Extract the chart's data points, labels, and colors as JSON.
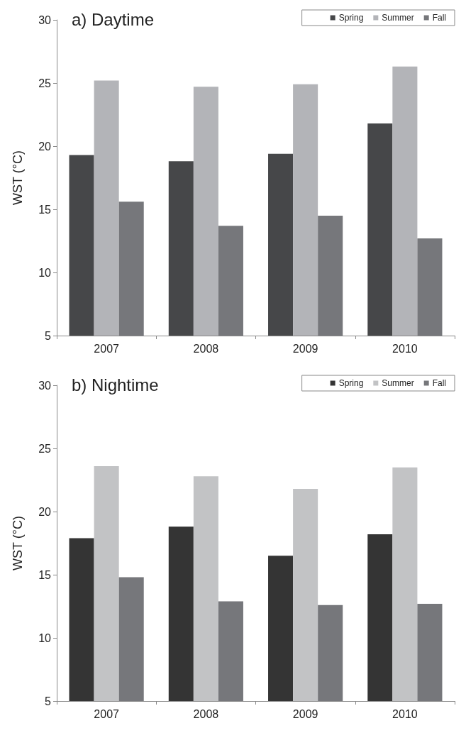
{
  "chart_data": [
    {
      "type": "bar",
      "title": "a) Daytime",
      "ylabel": "WST (°C)",
      "categories": [
        "2007",
        "2008",
        "2009",
        "2010"
      ],
      "series": [
        {
          "name": "Spring",
          "color": "#464749",
          "values": [
            19.3,
            18.8,
            19.4,
            21.8
          ]
        },
        {
          "name": "Summer",
          "color": "#b3b4b8",
          "values": [
            25.2,
            24.7,
            24.9,
            26.3
          ]
        },
        {
          "name": "Fall",
          "color": "#76777b",
          "values": [
            15.6,
            13.7,
            14.5,
            12.7
          ]
        }
      ],
      "ylim": [
        5,
        30
      ],
      "yticks": [
        5,
        10,
        15,
        20,
        25,
        30
      ],
      "legend": "top right"
    },
    {
      "type": "bar",
      "title": "b) Nightime",
      "ylabel": "WST (°C)",
      "categories": [
        "2007",
        "2008",
        "2009",
        "2010"
      ],
      "series": [
        {
          "name": "Spring",
          "color": "#343434",
          "values": [
            17.9,
            18.8,
            16.5,
            18.2
          ]
        },
        {
          "name": "Summer",
          "color": "#c2c3c5",
          "values": [
            23.6,
            22.8,
            21.8,
            23.5
          ]
        },
        {
          "name": "Fall",
          "color": "#76777b",
          "values": [
            14.8,
            12.9,
            12.6,
            12.7
          ]
        }
      ],
      "ylim": [
        5,
        30
      ],
      "yticks": [
        5,
        10,
        15,
        20,
        25,
        30
      ],
      "legend": "top right"
    }
  ]
}
